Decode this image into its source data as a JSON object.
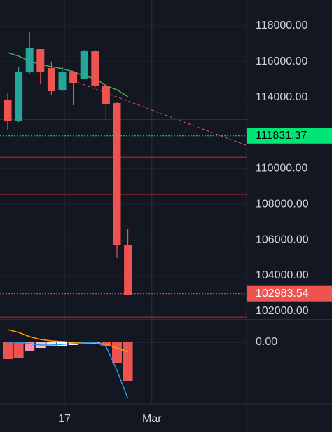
{
  "chart_data": {
    "type": "candlestick",
    "categories": [
      null,
      null,
      null,
      null,
      null,
      "17",
      null,
      null,
      null,
      null,
      null,
      null,
      null,
      "Mar"
    ],
    "open": [
      113830,
      112650,
      115400,
      116700,
      115640,
      114420,
      115400,
      115050,
      116580,
      114650,
      113670,
      105690,
      null,
      null
    ],
    "high": [
      114220,
      115720,
      117690,
      116700,
      116000,
      115720,
      115500,
      116620,
      116620,
      114730,
      113750,
      106630,
      null,
      null
    ],
    "low": [
      112140,
      112600,
      115300,
      114730,
      114150,
      114340,
      113550,
      115000,
      114540,
      112690,
      104980,
      102900,
      null,
      null
    ],
    "close": [
      112690,
      115400,
      116780,
      115400,
      114340,
      115400,
      114810,
      116580,
      114650,
      113630,
      105690,
      102930,
      null,
      null
    ],
    "up_color": "#26a69a",
    "down_color": "#ef5350",
    "moving_average": {
      "color": "#4caf50",
      "values": [
        116505,
        116310,
        116030,
        115840,
        115720,
        115600,
        115440,
        115200,
        115050,
        114650,
        114420,
        114030,
        null,
        null
      ]
    },
    "trend_line": {
      "color": "#ef5350",
      "start": [
        6,
        114930
      ],
      "end": [
        21.8,
        111310
      ]
    },
    "price_lines": {
      "color": "#c62828",
      "values": [
        112770,
        110640,
        108560,
        101670
      ]
    },
    "markers": [
      {
        "value": 111831.37,
        "color": "#00e676",
        "text_color": "#000000"
      },
      {
        "value": 102983.54,
        "color": "#ef5350",
        "text_color": "#ffffff"
      }
    ],
    "ylim": [
      101556,
      119455
    ],
    "yticks": [
      {
        "value": 118000,
        "label": "118000.00"
      },
      {
        "value": 116000,
        "label": "116000.00"
      },
      {
        "value": 114000,
        "label": "114000.00"
      },
      {
        "value": 110000,
        "label": "110000.00"
      },
      {
        "value": 108000,
        "label": "108000.00"
      },
      {
        "value": 106000,
        "label": "106000.00"
      },
      {
        "value": 104000,
        "label": "104000.00"
      },
      {
        "value": 102000,
        "label": "102000.00"
      }
    ],
    "indicator": {
      "histogram": [
        -24,
        -22,
        -12,
        -8,
        -6,
        -5,
        -4,
        -3,
        -3,
        -6,
        -30,
        -55,
        null,
        null
      ],
      "histogram_colors": [
        "#ef5350",
        "#ef5350",
        "#f48fb1",
        "#f8bbd0",
        "#fce4ec",
        "#ffffff",
        "#fce4ec",
        "#f8bbd0",
        "#f8bbd0",
        "#ef5350",
        "#ef5350",
        "#ef5350"
      ],
      "lines": [
        {
          "color": "#ff9800",
          "values": [
            18,
            14,
            8,
            4,
            2,
            1,
            0,
            -1,
            -1,
            -3,
            -8,
            -14,
            null,
            null
          ]
        },
        {
          "color": "#2196f3",
          "values": [
            0,
            0,
            -2,
            -4,
            -4,
            -3,
            -2,
            -1,
            0,
            -6,
            -40,
            -80,
            null,
            null
          ]
        }
      ],
      "ylim": [
        -90,
        30
      ],
      "yticks": [
        {
          "value": 0,
          "label": "0.00"
        }
      ]
    }
  }
}
